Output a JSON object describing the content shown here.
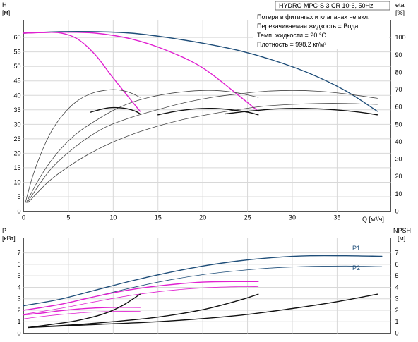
{
  "chart_data": [
    {
      "type": "line",
      "title": "HYDRO MPC-S 3 CR 10-6, 50Hz",
      "notes": [
        "Потери в фитингах и клапанах не вкл.",
        "Перекачиваемая жидкость = Вода",
        "Темп. жидкости = 20 °C",
        "Плотность = 998.2 кг/м³"
      ],
      "y_label_top": "H",
      "y_unit": "[м]",
      "y2_label_top": "eta",
      "y2_unit": "[%]",
      "x_label": "Q [м³/ч]",
      "xlim": [
        0,
        41
      ],
      "ylim": [
        0,
        66
      ],
      "y2lim": [
        0,
        110
      ],
      "x_ticks": [
        0,
        5,
        10,
        15,
        20,
        25,
        30,
        35
      ],
      "y_ticks": [
        0,
        5,
        10,
        15,
        20,
        25,
        30,
        35,
        40,
        45,
        50,
        55,
        60
      ],
      "y2_ticks": [
        0,
        10,
        20,
        30,
        40,
        50,
        60,
        70,
        80,
        90,
        100
      ],
      "colors": {
        "head": "#1f4e79",
        "head_reduced": "#e020d0",
        "eta_thin": "#444444",
        "eta": "#111111"
      },
      "series": [
        {
          "role": "head",
          "axis": "left",
          "color": "#1f4e79",
          "width": 1.4,
          "x": [
            0,
            4,
            8,
            12,
            16,
            20,
            24,
            28,
            32,
            36,
            39.5
          ],
          "y": [
            61.5,
            62,
            62,
            61.5,
            60,
            58,
            55.5,
            52,
            47.5,
            41.5,
            34.5
          ]
        },
        {
          "role": "head_reduced",
          "axis": "left",
          "color": "#e020d0",
          "width": 1.4,
          "x": [
            0,
            2,
            4,
            6,
            8,
            10,
            13
          ],
          "y": [
            61.5,
            61.7,
            61.6,
            59.5,
            54,
            46,
            34.5
          ]
        },
        {
          "role": "head_reduced",
          "axis": "left",
          "color": "#e020d0",
          "width": 1.4,
          "x": [
            0,
            4,
            8,
            12,
            16,
            20,
            24,
            26.2
          ],
          "y": [
            61.5,
            61.8,
            61.5,
            59.5,
            55.5,
            49.5,
            40,
            34.5
          ]
        },
        {
          "role": "eta_thin",
          "axis": "right",
          "color": "#444444",
          "width": 0.8,
          "x": [
            0.2,
            1,
            2,
            3,
            4,
            5,
            6,
            7,
            8,
            9,
            10,
            11,
            12,
            13
          ],
          "y": [
            5,
            20,
            34,
            45,
            53,
            59,
            63.5,
            66.5,
            68.5,
            69.5,
            70,
            69.5,
            68,
            65.5
          ]
        },
        {
          "role": "eta_thin",
          "axis": "right",
          "color": "#444444",
          "width": 0.8,
          "x": [
            0.3,
            2,
            4,
            6,
            8,
            10,
            12,
            14,
            16,
            18,
            20,
            22,
            24,
            26.2
          ],
          "y": [
            5,
            21,
            35,
            45,
            52,
            58,
            62.5,
            65.5,
            67.5,
            68.8,
            69.5,
            69.3,
            68,
            65.5
          ]
        },
        {
          "role": "eta_thin",
          "axis": "right",
          "color": "#444444",
          "width": 0.8,
          "x": [
            0.4,
            3,
            6,
            9,
            12,
            15,
            18,
            21,
            24,
            27,
            30,
            33,
            36,
            39.5
          ],
          "y": [
            5,
            24,
            38,
            48,
            54,
            58.5,
            62.5,
            65.5,
            67.5,
            69,
            69.5,
            69,
            67.5,
            65
          ]
        },
        {
          "role": "eta_thin",
          "axis": "right",
          "color": "#444444",
          "width": 0.8,
          "x": [
            0.5,
            3,
            6,
            9,
            12,
            15,
            18,
            21,
            24,
            27,
            30,
            33,
            36,
            39.5
          ],
          "y": [
            5,
            18,
            29,
            37.5,
            44,
            49,
            53,
            56,
            58.5,
            60.5,
            61.5,
            62,
            62,
            61.5
          ]
        },
        {
          "role": "eta",
          "axis": "right",
          "color": "#111111",
          "width": 1.4,
          "x": [
            7.5,
            8.5,
            9.5,
            10.5,
            11.5,
            12.5,
            13
          ],
          "y": [
            57,
            58.5,
            59.5,
            59.6,
            59,
            57.5,
            56
          ]
        },
        {
          "role": "eta",
          "axis": "right",
          "color": "#111111",
          "width": 1.4,
          "x": [
            15,
            17,
            19,
            21,
            23,
            25,
            26.2
          ],
          "y": [
            55.5,
            57.5,
            58.8,
            59.2,
            58.5,
            57,
            55.5
          ]
        },
        {
          "role": "eta",
          "axis": "right",
          "color": "#111111",
          "width": 1.4,
          "x": [
            22.5,
            25,
            28,
            31,
            34,
            37,
            39.5
          ],
          "y": [
            56,
            57.5,
            58.8,
            59.2,
            58.6,
            57.3,
            55.5
          ]
        }
      ]
    },
    {
      "type": "line",
      "y_label_top": "P",
      "y_unit": "[кВт]",
      "y2_label_top": "NPSH",
      "y2_unit": "[м]",
      "xlim": [
        0,
        41
      ],
      "ylim": [
        0,
        8.3
      ],
      "y2lim": [
        0,
        8.3
      ],
      "y_ticks": [
        0,
        1,
        2,
        3,
        4,
        5,
        6,
        7
      ],
      "y2_ticks": [
        0,
        1,
        2,
        3,
        4,
        5,
        6,
        7
      ],
      "series": [
        {
          "name": "P1",
          "axis": "left",
          "color": "#1f4e79",
          "width": 1.4,
          "x": [
            0,
            4,
            8,
            12,
            16,
            20,
            24,
            28,
            32,
            36,
            40
          ],
          "y": [
            2.4,
            2.95,
            3.75,
            4.55,
            5.25,
            5.85,
            6.3,
            6.6,
            6.75,
            6.75,
            6.7
          ]
        },
        {
          "name": "P2",
          "axis": "left",
          "color": "#1f4e79",
          "width": 0.8,
          "x": [
            0,
            4,
            8,
            12,
            16,
            20,
            24,
            28,
            32,
            36,
            40
          ],
          "y": [
            2,
            2.5,
            3.2,
            3.95,
            4.6,
            5.1,
            5.45,
            5.7,
            5.82,
            5.85,
            5.8
          ]
        },
        {
          "role": "p_reduced",
          "axis": "left",
          "color": "#e020d0",
          "width": 1.4,
          "x": [
            0,
            2,
            4,
            6,
            8,
            10,
            13
          ],
          "y": [
            1.6,
            1.75,
            1.95,
            2.1,
            2.2,
            2.25,
            2.25
          ]
        },
        {
          "role": "p_reduced",
          "axis": "left",
          "color": "#e020d0",
          "width": 0.8,
          "x": [
            0,
            2,
            4,
            6,
            8,
            10,
            13
          ],
          "y": [
            1.25,
            1.45,
            1.62,
            1.75,
            1.85,
            1.9,
            1.9
          ]
        },
        {
          "role": "p_reduced",
          "axis": "left",
          "color": "#e020d0",
          "width": 1.4,
          "x": [
            0,
            4,
            8,
            12,
            16,
            20,
            24,
            26.2
          ],
          "y": [
            2,
            2.5,
            3.2,
            3.8,
            4.2,
            4.45,
            4.5,
            4.5
          ]
        },
        {
          "role": "p_reduced",
          "axis": "left",
          "color": "#e020d0",
          "width": 0.8,
          "x": [
            0,
            4,
            8,
            12,
            16,
            20,
            24,
            26.2
          ],
          "y": [
            1.65,
            2.15,
            2.75,
            3.3,
            3.7,
            3.95,
            4.05,
            4.05
          ]
        },
        {
          "role": "npsh",
          "axis": "right",
          "color": "#111111",
          "width": 1.4,
          "x": [
            0.5,
            3,
            6,
            9,
            11,
            13
          ],
          "y": [
            0.5,
            0.75,
            1.1,
            1.7,
            2.4,
            3.4
          ]
        },
        {
          "role": "npsh",
          "axis": "right",
          "color": "#111111",
          "width": 1.4,
          "x": [
            0.5,
            5,
            10,
            15,
            20,
            24,
            26.2
          ],
          "y": [
            0.5,
            0.7,
            1.0,
            1.4,
            2.05,
            2.85,
            3.4
          ]
        },
        {
          "role": "npsh",
          "axis": "right",
          "color": "#111111",
          "width": 1.4,
          "x": [
            0.5,
            8,
            16,
            24,
            30,
            35,
            39.5
          ],
          "y": [
            0.5,
            0.75,
            1.05,
            1.55,
            2.15,
            2.75,
            3.4
          ]
        }
      ]
    }
  ]
}
